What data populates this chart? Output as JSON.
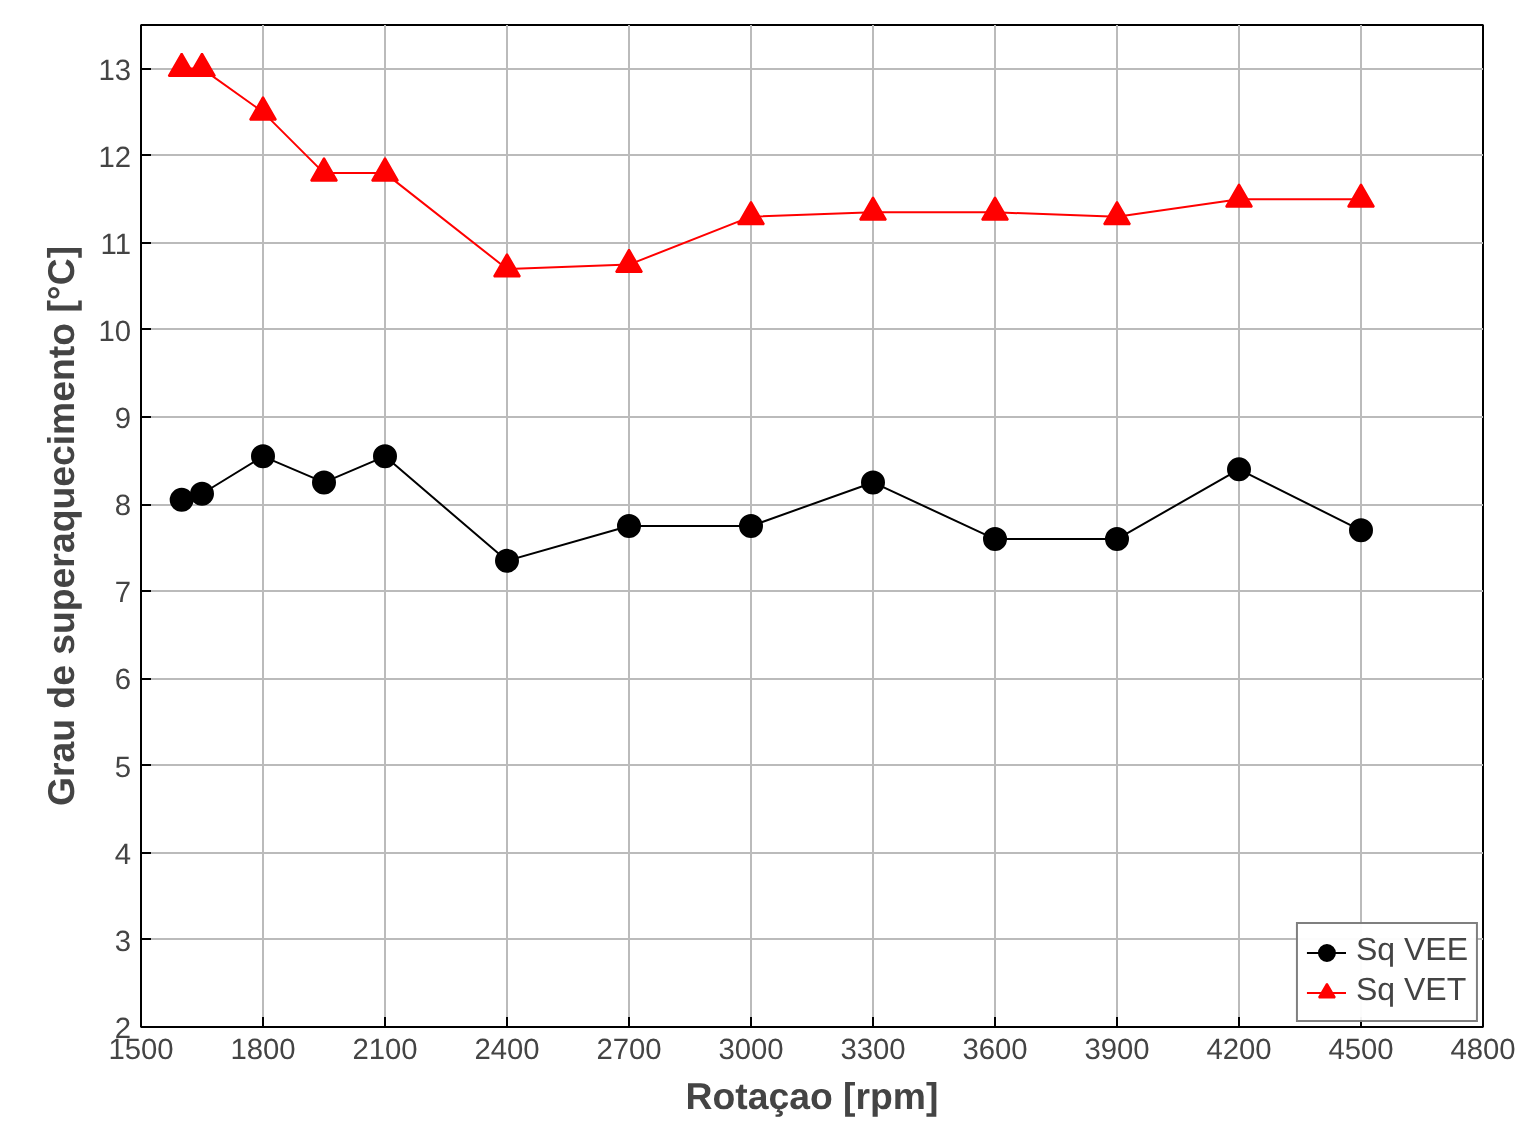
{
  "chart_data": {
    "type": "line",
    "xlabel": "Rotaçao [rpm]",
    "ylabel": "Grau de superaquecimento [°C]",
    "x": [
      1600,
      1650,
      1800,
      1950,
      2100,
      2400,
      2700,
      3000,
      3300,
      3600,
      3900,
      4200,
      4500
    ],
    "series": [
      {
        "name": "Sq VEE",
        "color": "#000000",
        "marker": "circle",
        "values": [
          8.05,
          8.12,
          8.55,
          8.25,
          8.55,
          7.35,
          7.75,
          7.75,
          8.25,
          7.6,
          7.6,
          8.4,
          7.7
        ]
      },
      {
        "name": "Sq VET",
        "color": "#ff0000",
        "marker": "triangle",
        "values": [
          13.0,
          13.0,
          12.5,
          11.8,
          11.8,
          10.7,
          10.75,
          11.3,
          11.35,
          11.35,
          11.3,
          11.5,
          11.5
        ]
      }
    ],
    "xlim": [
      1500,
      4800
    ],
    "ylim": [
      2,
      13.5
    ],
    "xticks": [
      1500,
      1800,
      2100,
      2400,
      2700,
      3000,
      3300,
      3600,
      3900,
      4200,
      4500,
      4800
    ],
    "yticks": [
      2,
      3,
      4,
      5,
      6,
      7,
      8,
      9,
      10,
      11,
      12,
      13
    ],
    "grid": true,
    "legend": "bottom right",
    "line_style": "solid"
  }
}
